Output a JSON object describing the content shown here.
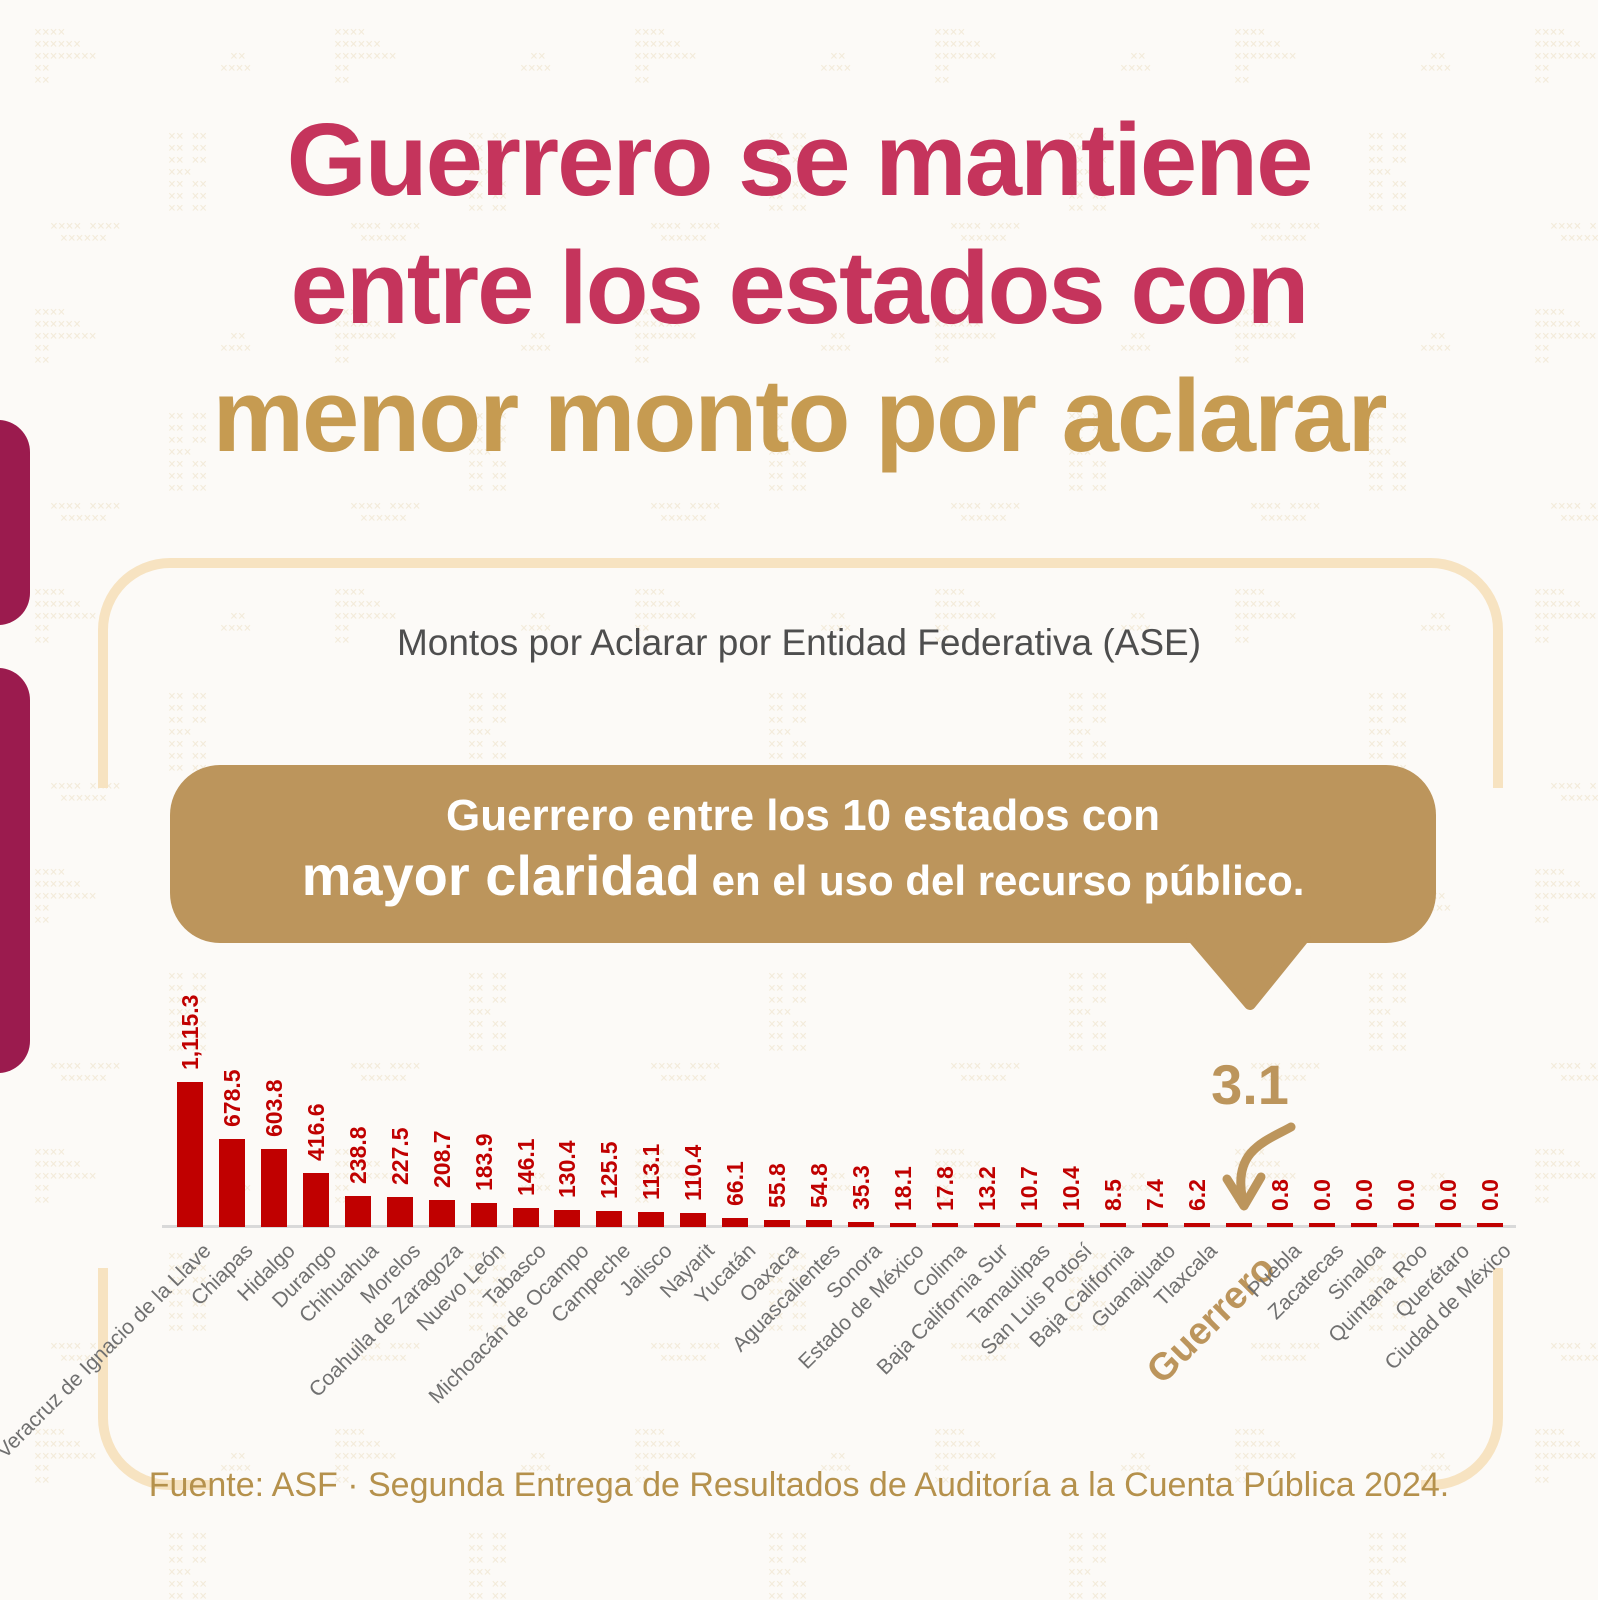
{
  "title": {
    "line1": "Guerrero se mantiene",
    "line2": "entre los estados con",
    "line3": "menor monto por aclarar"
  },
  "card": {
    "subtitle": "Montos por Aclarar por Entidad Federativa (ASE)",
    "source": "Fuente: ASF · Segunda Entrega de Resultados de Auditoría a la Cuenta Pública 2024."
  },
  "callout": {
    "line1": "Guerrero entre los 10 estados con",
    "emphasis": "mayor claridad",
    "rest": " en el uso del recurso público.",
    "value_label": "3.1"
  },
  "colors": {
    "bg": "#FCFAF7",
    "pattern": "#F0E6D1",
    "title_pink": "#C5345C",
    "title_gold": "#C69B51",
    "accent_magenta": "#9B1B4E",
    "bubble_gold": "#BC955C",
    "border_peach": "#F7E3C1",
    "subtitle_gray": "#4E4E4E",
    "bar_red": "#C00000",
    "cat_gray": "#707070",
    "axis_gray": "#D9D9D9",
    "source_gold": "#B5914C"
  },
  "chart_data": {
    "type": "bar",
    "title": "Montos por Aclarar por Entidad Federativa (ASE)",
    "categories": [
      "Veracruz de Ignacio de la Llave",
      "Chiapas",
      "Hidalgo",
      "Durango",
      "Chihuahua",
      "Morelos",
      "Coahuila de Zaragoza",
      "Nuevo León",
      "Tabasco",
      "Michoacán de Ocampo",
      "Campeche",
      "Jalisco",
      "Nayarit",
      "Yucatán",
      "Oaxaca",
      "Aguascalientes",
      "Sonora",
      "Estado de México",
      "Colima",
      "Baja California Sur",
      "Tamaulipas",
      "San Luis Potosí",
      "Baja California",
      "Guanajuato",
      "Tlaxcala",
      "Guerrero",
      "Puebla",
      "Zacatecas",
      "Sinaloa",
      "Quintana Roo",
      "Querétaro",
      "Ciudad de México"
    ],
    "values": [
      1115.3,
      678.5,
      603.8,
      416.6,
      238.8,
      227.5,
      208.7,
      183.9,
      146.1,
      130.4,
      125.5,
      113.1,
      110.4,
      66.1,
      55.8,
      54.8,
      35.3,
      18.1,
      17.8,
      13.2,
      10.7,
      10.4,
      8.5,
      7.4,
      6.2,
      3.1,
      0.8,
      0.0,
      0.0,
      0.0,
      0.0,
      0.0
    ],
    "value_labels": [
      "1,115.3",
      "678.5",
      "603.8",
      "416.6",
      "238.8",
      "227.5",
      "208.7",
      "183.9",
      "146.1",
      "130.4",
      "125.5",
      "113.1",
      "110.4",
      "66.1",
      "55.8",
      "54.8",
      "35.3",
      "18.1",
      "17.8",
      "13.2",
      "10.7",
      "10.4",
      "8.5",
      "7.4",
      "6.2",
      null,
      "0.8",
      "0.0",
      "0.0",
      "0.0",
      "0.0",
      "0.0"
    ],
    "highlight": {
      "category": "Guerrero",
      "value": 3.1,
      "label": "3.1",
      "color": "#BC955C"
    },
    "bar_color": "#C00000",
    "ylim": [
      0,
      1200
    ],
    "grid": false,
    "legend": false,
    "x_label_rotation": 45,
    "value_label_rotation": 90
  }
}
